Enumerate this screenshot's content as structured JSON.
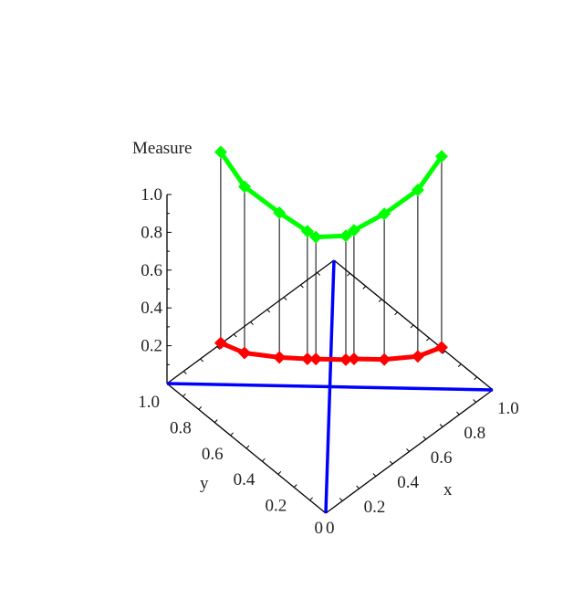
{
  "chart_data": {
    "type": "line",
    "projection": "3d",
    "zlabel": "Measure",
    "xlabel": "x",
    "ylabel": "y",
    "xlim": [
      0,
      1
    ],
    "ylim": [
      0,
      1
    ],
    "zlim": [
      0,
      1.0
    ],
    "z_ticks": [
      "0.2",
      "0.4",
      "0.6",
      "0.8",
      "1.0"
    ],
    "x_ticks": [
      "0",
      "0.2",
      "0.4",
      "0.6",
      "0.8",
      "1.0"
    ],
    "y_ticks": [
      "0",
      "0.2",
      "0.4",
      "0.6",
      "0.8",
      "1.0"
    ],
    "grid": false,
    "x": [
      0.165,
      0.238,
      0.345,
      0.431,
      0.457,
      0.549,
      0.574,
      0.667,
      0.77,
      0.843
    ],
    "series": [
      {
        "color": "#ff0000",
        "marker": "diamond",
        "z": [
          0.22,
          0.17,
          0.15,
          0.145,
          0.145,
          0.145,
          0.15,
          0.15,
          0.17,
          0.22
        ]
      },
      {
        "color": "#00ff00",
        "marker": "diamond",
        "z": [
          1.23,
          1.05,
          0.915,
          0.82,
          0.79,
          0.8,
          0.83,
          0.92,
          1.05,
          1.23
        ]
      }
    ],
    "reference_lines_color": "#0000ff"
  }
}
